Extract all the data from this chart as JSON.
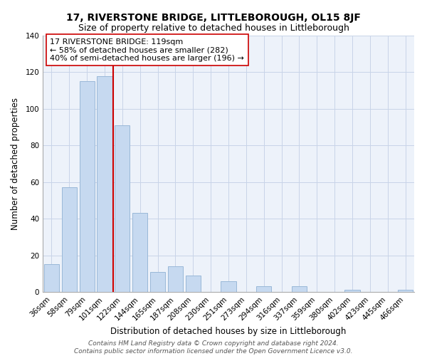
{
  "title": "17, RIVERSTONE BRIDGE, LITTLEBOROUGH, OL15 8JF",
  "subtitle": "Size of property relative to detached houses in Littleborough",
  "xlabel": "Distribution of detached houses by size in Littleborough",
  "ylabel": "Number of detached properties",
  "categories": [
    "36sqm",
    "58sqm",
    "79sqm",
    "101sqm",
    "122sqm",
    "144sqm",
    "165sqm",
    "187sqm",
    "208sqm",
    "230sqm",
    "251sqm",
    "273sqm",
    "294sqm",
    "316sqm",
    "337sqm",
    "359sqm",
    "380sqm",
    "402sqm",
    "423sqm",
    "445sqm",
    "466sqm"
  ],
  "values": [
    15,
    57,
    115,
    118,
    91,
    43,
    11,
    14,
    9,
    0,
    6,
    0,
    3,
    0,
    3,
    0,
    0,
    1,
    0,
    0,
    1
  ],
  "bar_color": "#c6d9f0",
  "bar_edge_color": "#9ab8d8",
  "vline_color": "#cc0000",
  "vline_index": 3.5,
  "annotation_text": "17 RIVERSTONE BRIDGE: 119sqm\n← 58% of detached houses are smaller (282)\n40% of semi-detached houses are larger (196) →",
  "annotation_box_edgecolor": "#cc0000",
  "annotation_box_facecolor": "#ffffff",
  "ylim": [
    0,
    140
  ],
  "yticks": [
    0,
    20,
    40,
    60,
    80,
    100,
    120,
    140
  ],
  "footer_line1": "Contains HM Land Registry data © Crown copyright and database right 2024.",
  "footer_line2": "Contains public sector information licensed under the Open Government Licence v3.0.",
  "title_fontsize": 10,
  "subtitle_fontsize": 9,
  "xlabel_fontsize": 8.5,
  "ylabel_fontsize": 8.5,
  "tick_fontsize": 7.5,
  "annotation_fontsize": 8,
  "footer_fontsize": 6.5,
  "bg_color": "#edf2fa"
}
